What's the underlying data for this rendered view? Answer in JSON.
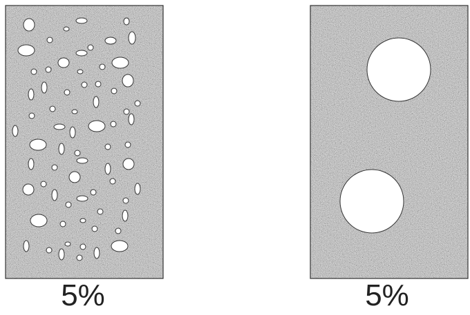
{
  "panels": [
    {
      "caption": "5%",
      "pore_style": "many-small"
    },
    {
      "caption": "5%",
      "pore_style": "two-large"
    }
  ],
  "colors": {
    "matrix": "#9a9a9a",
    "pore_fill": "#ffffff",
    "outline": "#333333"
  }
}
